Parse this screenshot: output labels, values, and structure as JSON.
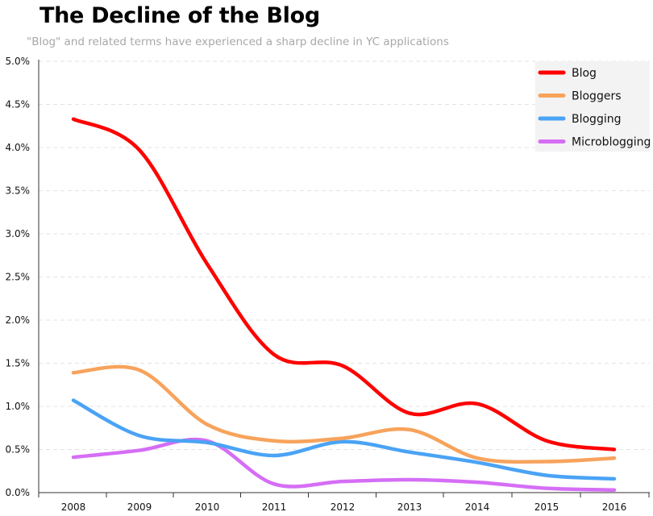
{
  "chart_data": {
    "type": "line",
    "title": "The Decline of the Blog",
    "subtitle": "\"Blog\" and related terms have experienced  a sharp decline in YC applications",
    "xlabel": "",
    "ylabel": "",
    "x": [
      2008,
      2009,
      2010,
      2011,
      2012,
      2013,
      2014,
      2015,
      2016
    ],
    "x_tick_labels": [
      "2008",
      "2009",
      "2010",
      "2011",
      "2012",
      "2013",
      "2014",
      "2015",
      "2016"
    ],
    "ylim": [
      0,
      5
    ],
    "y_ticks": [
      0,
      0.5,
      1,
      1.5,
      2,
      2.5,
      3,
      3.5,
      4,
      4.5,
      5
    ],
    "y_tick_labels": [
      "0.0%",
      "0.5%",
      "1.0%",
      "1.5%",
      "2.0%",
      "2.5%",
      "3.0%",
      "3.5%",
      "4.0%",
      "4.5%",
      "5.0%"
    ],
    "grid": "horizontal dashed",
    "legend_position": "top-right",
    "series": [
      {
        "name": "Blog",
        "color": "#ff0000",
        "values": [
          4.33,
          3.97,
          2.65,
          1.6,
          1.47,
          0.92,
          1.03,
          0.6,
          0.5
        ]
      },
      {
        "name": "Bloggers",
        "color": "#f7a35c",
        "values": [
          1.39,
          1.42,
          0.79,
          0.6,
          0.63,
          0.73,
          0.4,
          0.36,
          0.4
        ]
      },
      {
        "name": "Blogging",
        "color": "#4aa3f5",
        "values": [
          1.07,
          0.66,
          0.58,
          0.43,
          0.59,
          0.47,
          0.35,
          0.2,
          0.16
        ]
      },
      {
        "name": "Microblogging",
        "color": "#d56ef5",
        "values": [
          0.41,
          0.49,
          0.6,
          0.1,
          0.13,
          0.15,
          0.12,
          0.05,
          0.03
        ]
      }
    ]
  }
}
